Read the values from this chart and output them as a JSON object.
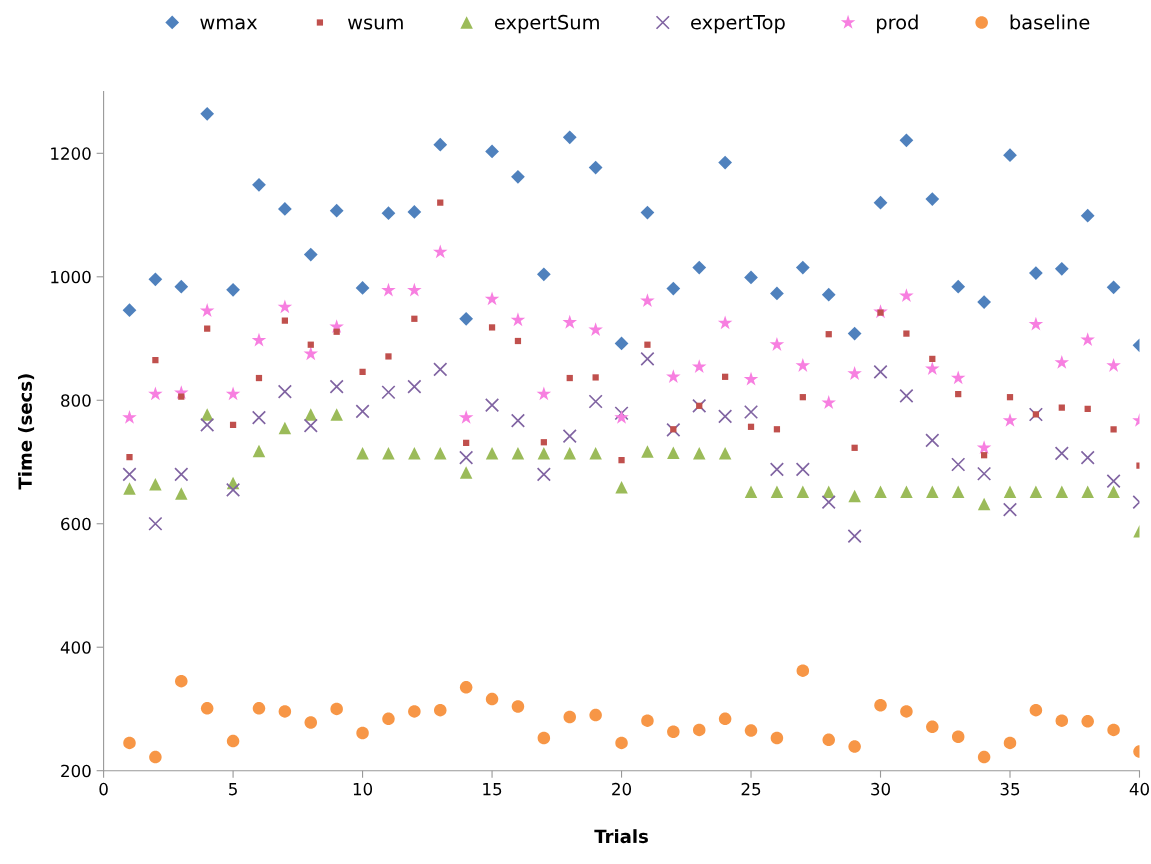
{
  "chart_data": {
    "type": "scatter",
    "xlabel": "Trials",
    "ylabel": "Time (secs)",
    "x": [
      1,
      2,
      3,
      4,
      5,
      6,
      7,
      8,
      9,
      10,
      11,
      12,
      13,
      14,
      15,
      16,
      17,
      18,
      19,
      20,
      21,
      22,
      23,
      24,
      25,
      26,
      27,
      28,
      29,
      30,
      31,
      32,
      33,
      34,
      35,
      36,
      37,
      38,
      39,
      40
    ],
    "xlim": [
      0,
      40
    ],
    "xticks": [
      0,
      5,
      10,
      15,
      20,
      25,
      30,
      35,
      40
    ],
    "ylim": [
      200,
      1300
    ],
    "yticks": [
      200,
      400,
      600,
      800,
      1000,
      1200
    ],
    "grid": false,
    "legend": "top",
    "series": [
      {
        "name": "wmax",
        "color": "#4f81bd",
        "marker": "diamond",
        "values": [
          946,
          996,
          984,
          1264,
          979,
          1149,
          1110,
          1036,
          1107,
          982,
          1103,
          1105,
          1214,
          932,
          1203,
          1162,
          1004,
          1226,
          1177,
          892,
          1104,
          981,
          1015,
          1185,
          999,
          973,
          1015,
          971,
          908,
          1120,
          1221,
          1126,
          984,
          959,
          1197,
          1006,
          1013,
          1099,
          983,
          889
        ]
      },
      {
        "name": "wsum",
        "color": "#c0504d",
        "marker": "square",
        "values": [
          708,
          865,
          806,
          916,
          760,
          836,
          929,
          890,
          911,
          846,
          871,
          932,
          1120,
          731,
          918,
          896,
          732,
          836,
          837,
          703,
          890,
          753,
          791,
          838,
          757,
          753,
          805,
          907,
          723,
          942,
          908,
          867,
          810,
          711,
          805,
          777,
          788,
          786,
          753,
          694
        ]
      },
      {
        "name": "expertSum",
        "color": "#9bbb59",
        "marker": "triangle",
        "values": [
          657,
          664,
          649,
          777,
          666,
          718,
          755,
          777,
          777,
          714,
          714,
          714,
          714,
          683,
          714,
          714,
          714,
          714,
          714,
          659,
          717,
          715,
          714,
          714,
          652,
          652,
          652,
          652,
          645,
          652,
          652,
          652,
          652,
          632,
          652,
          652,
          652,
          652,
          652,
          588
        ]
      },
      {
        "name": "expertTop",
        "color": "#8064a2",
        "marker": "cross",
        "values": [
          680,
          600,
          680,
          760,
          655,
          772,
          814,
          759,
          822,
          782,
          813,
          822,
          850,
          707,
          792,
          767,
          680,
          742,
          798,
          779,
          867,
          752,
          791,
          774,
          781,
          688,
          688,
          635,
          580,
          846,
          807,
          735,
          696,
          681,
          623,
          777,
          714,
          707,
          669,
          635
        ]
      },
      {
        "name": "prod",
        "color": "#f77fe0",
        "marker": "star",
        "values": [
          772,
          810,
          812,
          945,
          810,
          897,
          951,
          875,
          919,
          null,
          978,
          978,
          1040,
          772,
          964,
          930,
          810,
          926,
          914,
          772,
          961,
          838,
          854,
          925,
          834,
          890,
          856,
          796,
          843,
          943,
          969,
          851,
          836,
          723,
          767,
          923,
          861,
          898,
          856,
          767
        ]
      },
      {
        "name": "baseline",
        "color": "#f79646",
        "marker": "circle",
        "values": [
          245,
          222,
          345,
          301,
          248,
          301,
          296,
          278,
          300,
          261,
          284,
          296,
          298,
          335,
          316,
          304,
          253,
          287,
          290,
          245,
          281,
          263,
          266,
          284,
          265,
          253,
          362,
          250,
          239,
          306,
          296,
          271,
          255,
          222,
          245,
          298,
          281,
          280,
          266,
          231
        ]
      }
    ]
  }
}
